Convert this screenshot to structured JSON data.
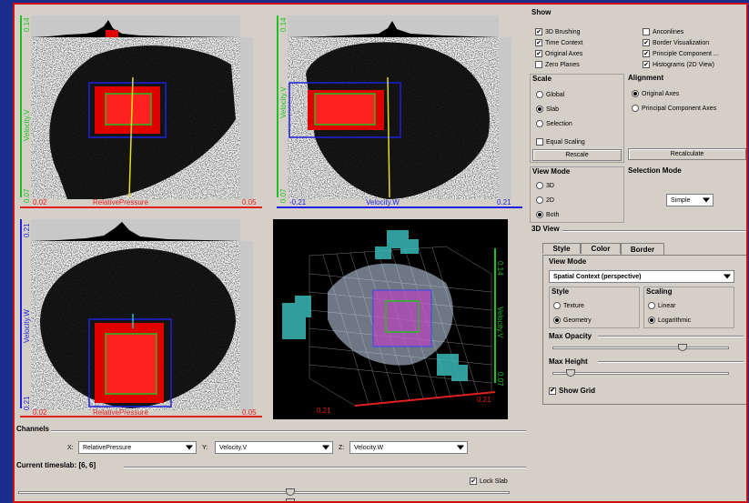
{
  "plots": {
    "p1": {
      "x_min": "0.02",
      "x_label": "RelativePressure",
      "x_max": "0.05",
      "y_min": "0.07",
      "y_label": "Velocity.V",
      "y_max": "0.14"
    },
    "p2": {
      "x_min": "-0.21",
      "x_label": "Velocity.W",
      "x_max": "0.21",
      "y_min": "0.07",
      "y_label": "Velocity.V",
      "y_max": "0.14"
    },
    "p3": {
      "x_min": "0.02",
      "x_label": "RelativePressure",
      "x_max": "0.05",
      "y_min": "0.21",
      "y_label": "Velocity.W",
      "y_max": "0.21"
    },
    "p4": {
      "y_label": "Velocity.V",
      "y_max": "0.14",
      "y_min": "0.07",
      "x_max": "0.21",
      "x_min": "0.21"
    }
  },
  "show": {
    "title": "Show",
    "items": [
      {
        "label": "3D Brushing",
        "checked": true
      },
      {
        "label": "Time Context",
        "checked": true
      },
      {
        "label": "Original Axes",
        "checked": true
      },
      {
        "label": "Zero Planes",
        "checked": false
      },
      {
        "label": "Anconlines",
        "checked": false
      },
      {
        "label": "Border Visualization",
        "checked": true
      },
      {
        "label": "Principle Component ...",
        "checked": true
      },
      {
        "label": "Histograms (2D View)",
        "checked": true
      }
    ]
  },
  "scale": {
    "title": "Scale",
    "global": "Global",
    "slab": "Slab",
    "selection": "Selection",
    "equal_scaling": "Equal Scaling",
    "rescale": "Rescale"
  },
  "alignment": {
    "title": "Alignment",
    "original_axes": "Original Axes",
    "pca_axes": "Principal Component Axes",
    "recalculate": "Recalculate"
  },
  "view_mode": {
    "title": "View Mode",
    "opt_3d": "3D",
    "opt_2d": "2D",
    "opt_both": "Both"
  },
  "selection_mode": {
    "title": "Selection Mode",
    "value": "Simple"
  },
  "view3d": {
    "title": "3D View",
    "tabs": [
      "Style",
      "Color",
      "Border"
    ],
    "view_mode_title": "View Mode",
    "view_mode_value": "Spatial Context (perspective)",
    "style_title": "Style",
    "texture": "Texture",
    "geometry": "Geometry",
    "scaling_title": "Scaling",
    "linear": "Linear",
    "logarithmic": "Logarithmic",
    "max_opacity": "Max Opacity",
    "max_opacity_value": 0.75,
    "max_height": "Max Height",
    "max_height_value": 0.08,
    "show_grid": "Show Grid"
  },
  "channels": {
    "title": "Channels",
    "x_label": "X:",
    "x_value": "RelativePressure",
    "y_label": "Y:",
    "y_value": "Velocity.V",
    "z_label": "Z:",
    "z_value": "Velocity.W"
  },
  "timeslab": {
    "title": "Current timeslab: [6, 6]",
    "lock": "Lock Slab"
  }
}
